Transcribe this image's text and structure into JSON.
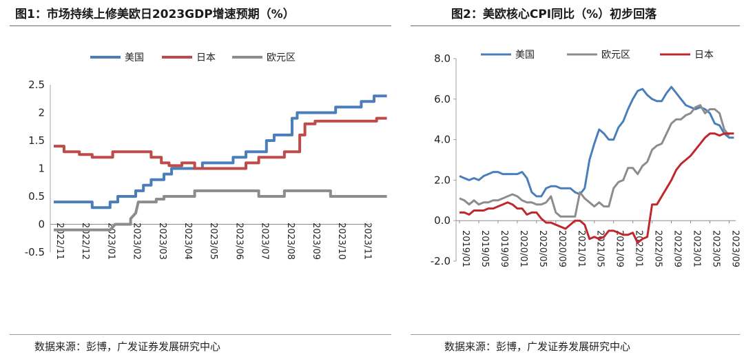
{
  "left": {
    "title": "图1：市场持续上修美欧日2023GDP增速预期（%）",
    "source": "数据来源：彭博，广发证券发展研究中心"
  },
  "right": {
    "title": "图2：美欧核心CPI同比（%）初步回落",
    "source": "数据来源：彭博，广发证券发展研究中心"
  },
  "chart_data": [
    {
      "type": "line",
      "title": "图1：市场持续上修美欧日2023GDP增速预期（%）",
      "xlabel": "",
      "ylabel": "",
      "ylim": [
        -0.5,
        2.5
      ],
      "yticks": [
        "2.5",
        "2",
        "1.5",
        "1",
        "0.5",
        "0",
        "-0.5"
      ],
      "xticks": [
        "2022/11",
        "2022/12",
        "2023/01",
        "2023/02",
        "2023/03",
        "2023/04",
        "2023/05",
        "2023/06",
        "2023/07",
        "2023/08",
        "2023/09",
        "2023/10",
        "2023/11"
      ],
      "legend": "top-center",
      "series": [
        {
          "name": "美国",
          "color": "#4a7ebb",
          "points": [
            [
              0,
              0.4
            ],
            [
              1.5,
              0.4
            ],
            [
              1.5,
              0.3
            ],
            [
              2.2,
              0.3
            ],
            [
              2.2,
              0.4
            ],
            [
              2.5,
              0.4
            ],
            [
              2.5,
              0.5
            ],
            [
              3.2,
              0.5
            ],
            [
              3.2,
              0.6
            ],
            [
              3.5,
              0.6
            ],
            [
              3.5,
              0.7
            ],
            [
              3.8,
              0.7
            ],
            [
              3.8,
              0.8
            ],
            [
              4.3,
              0.8
            ],
            [
              4.3,
              0.9
            ],
            [
              4.6,
              0.9
            ],
            [
              4.6,
              1.0
            ],
            [
              5.8,
              1.0
            ],
            [
              5.8,
              1.1
            ],
            [
              7.0,
              1.1
            ],
            [
              7.0,
              1.2
            ],
            [
              7.5,
              1.2
            ],
            [
              7.5,
              1.3
            ],
            [
              8.3,
              1.3
            ],
            [
              8.3,
              1.5
            ],
            [
              8.6,
              1.5
            ],
            [
              8.6,
              1.6
            ],
            [
              9.3,
              1.6
            ],
            [
              9.3,
              1.9
            ],
            [
              9.5,
              1.9
            ],
            [
              9.5,
              2.0
            ],
            [
              11.0,
              2.0
            ],
            [
              11.0,
              2.1
            ],
            [
              12.0,
              2.1
            ],
            [
              12.0,
              2.2
            ],
            [
              12.5,
              2.2
            ],
            [
              12.5,
              2.3
            ],
            [
              13,
              2.3
            ]
          ]
        },
        {
          "name": "日本",
          "color": "#be4b48",
          "points": [
            [
              0,
              1.4
            ],
            [
              0.4,
              1.4
            ],
            [
              0.4,
              1.3
            ],
            [
              1.0,
              1.3
            ],
            [
              1.0,
              1.25
            ],
            [
              1.5,
              1.25
            ],
            [
              1.5,
              1.2
            ],
            [
              2.3,
              1.2
            ],
            [
              2.3,
              1.3
            ],
            [
              3.8,
              1.3
            ],
            [
              3.8,
              1.2
            ],
            [
              4.2,
              1.2
            ],
            [
              4.2,
              1.1
            ],
            [
              4.5,
              1.1
            ],
            [
              4.5,
              1.05
            ],
            [
              5.0,
              1.05
            ],
            [
              5.0,
              1.1
            ],
            [
              5.5,
              1.1
            ],
            [
              5.5,
              1.0
            ],
            [
              7.5,
              1.0
            ],
            [
              7.5,
              1.1
            ],
            [
              8.0,
              1.1
            ],
            [
              8.0,
              1.2
            ],
            [
              9.0,
              1.2
            ],
            [
              9.0,
              1.3
            ],
            [
              9.6,
              1.3
            ],
            [
              9.6,
              1.6
            ],
            [
              9.8,
              1.6
            ],
            [
              9.8,
              1.8
            ],
            [
              10.2,
              1.8
            ],
            [
              10.2,
              1.85
            ],
            [
              12.6,
              1.85
            ],
            [
              12.6,
              1.9
            ],
            [
              13,
              1.9
            ]
          ]
        },
        {
          "name": "欧元区",
          "color": "#8c8c8c",
          "points": [
            [
              0,
              -0.1
            ],
            [
              2.2,
              -0.1
            ],
            [
              2.4,
              0.0
            ],
            [
              3.0,
              0.0
            ],
            [
              3.0,
              0.1
            ],
            [
              3.2,
              0.2
            ],
            [
              3.3,
              0.4
            ],
            [
              4.0,
              0.4
            ],
            [
              4.0,
              0.45
            ],
            [
              4.3,
              0.45
            ],
            [
              4.3,
              0.5
            ],
            [
              5.5,
              0.5
            ],
            [
              5.5,
              0.6
            ],
            [
              8.0,
              0.6
            ],
            [
              8.0,
              0.5
            ],
            [
              9.0,
              0.5
            ],
            [
              9.0,
              0.6
            ],
            [
              10.8,
              0.6
            ],
            [
              10.8,
              0.5
            ],
            [
              13,
              0.5
            ]
          ]
        }
      ]
    },
    {
      "type": "line",
      "title": "图2：美欧核心CPI同比（%）初步回落",
      "xlabel": "",
      "ylabel": "",
      "ylim": [
        -2.0,
        8.0
      ],
      "yticks": [
        "8.0",
        "6.0",
        "4.0",
        "2.0",
        "0.0",
        "-2.0"
      ],
      "xticks": [
        "2019/01",
        "2019/05",
        "2019/09",
        "2020/01",
        "2020/05",
        "2020/09",
        "2021/01",
        "2021/05",
        "2021/09",
        "2022/01",
        "2022/05",
        "2022/09",
        "2023/01",
        "2023/05",
        "2023/09"
      ],
      "legend": "top-center",
      "series": [
        {
          "name": "美国",
          "color": "#4a7ebb",
          "points": [
            [
              0,
              2.2
            ],
            [
              1,
              2.1
            ],
            [
              2,
              2.0
            ],
            [
              3,
              2.1
            ],
            [
              4,
              2.0
            ],
            [
              5,
              2.2
            ],
            [
              6,
              2.3
            ],
            [
              7,
              2.4
            ],
            [
              8,
              2.4
            ],
            [
              9,
              2.3
            ],
            [
              10,
              2.3
            ],
            [
              11,
              2.3
            ],
            [
              12,
              2.3
            ],
            [
              13,
              2.4
            ],
            [
              14,
              2.1
            ],
            [
              15,
              1.4
            ],
            [
              16,
              1.2
            ],
            [
              17,
              1.2
            ],
            [
              18,
              1.6
            ],
            [
              19,
              1.7
            ],
            [
              20,
              1.7
            ],
            [
              21,
              1.6
            ],
            [
              22,
              1.6
            ],
            [
              23,
              1.6
            ],
            [
              24,
              1.4
            ],
            [
              25,
              1.3
            ],
            [
              26,
              1.6
            ],
            [
              27,
              3.0
            ],
            [
              28,
              3.8
            ],
            [
              29,
              4.5
            ],
            [
              30,
              4.3
            ],
            [
              31,
              4.0
            ],
            [
              32,
              4.0
            ],
            [
              33,
              4.6
            ],
            [
              34,
              4.9
            ],
            [
              35,
              5.5
            ],
            [
              36,
              6.0
            ],
            [
              37,
              6.4
            ],
            [
              38,
              6.5
            ],
            [
              39,
              6.2
            ],
            [
              40,
              6.0
            ],
            [
              41,
              5.9
            ],
            [
              42,
              5.9
            ],
            [
              43,
              6.3
            ],
            [
              44,
              6.6
            ],
            [
              45,
              6.3
            ],
            [
              46,
              6.0
            ],
            [
              47,
              5.7
            ],
            [
              48,
              5.6
            ],
            [
              49,
              5.5
            ],
            [
              50,
              5.6
            ],
            [
              51,
              5.5
            ],
            [
              52,
              5.3
            ],
            [
              53,
              4.8
            ],
            [
              54,
              4.7
            ],
            [
              55,
              4.3
            ],
            [
              56,
              4.1
            ],
            [
              57,
              4.1
            ]
          ]
        },
        {
          "name": "欧元区",
          "color": "#8c8c8c",
          "points": [
            [
              0,
              1.1
            ],
            [
              1,
              1.0
            ],
            [
              2,
              0.8
            ],
            [
              3,
              1.0
            ],
            [
              4,
              0.8
            ],
            [
              5,
              0.9
            ],
            [
              6,
              0.9
            ],
            [
              7,
              1.0
            ],
            [
              8,
              1.0
            ],
            [
              9,
              1.1
            ],
            [
              10,
              1.2
            ],
            [
              11,
              1.3
            ],
            [
              12,
              1.2
            ],
            [
              13,
              1.0
            ],
            [
              14,
              0.9
            ],
            [
              15,
              0.9
            ],
            [
              16,
              0.8
            ],
            [
              17,
              0.8
            ],
            [
              18,
              0.9
            ],
            [
              19,
              1.2
            ],
            [
              20,
              0.4
            ],
            [
              21,
              0.2
            ],
            [
              22,
              0.2
            ],
            [
              23,
              0.2
            ],
            [
              24,
              0.2
            ],
            [
              25,
              1.4
            ],
            [
              26,
              1.1
            ],
            [
              27,
              0.9
            ],
            [
              28,
              0.7
            ],
            [
              29,
              0.9
            ],
            [
              30,
              0.7
            ],
            [
              31,
              0.7
            ],
            [
              32,
              1.6
            ],
            [
              33,
              1.9
            ],
            [
              34,
              2.0
            ],
            [
              35,
              2.6
            ],
            [
              36,
              2.6
            ],
            [
              37,
              2.3
            ],
            [
              38,
              2.7
            ],
            [
              39,
              2.9
            ],
            [
              40,
              3.5
            ],
            [
              41,
              3.7
            ],
            [
              42,
              3.8
            ],
            [
              43,
              4.3
            ],
            [
              44,
              4.8
            ],
            [
              45,
              5.0
            ],
            [
              46,
              5.0
            ],
            [
              47,
              5.2
            ],
            [
              48,
              5.3
            ],
            [
              49,
              5.6
            ],
            [
              50,
              5.7
            ],
            [
              51,
              5.3
            ],
            [
              52,
              5.5
            ],
            [
              53,
              5.5
            ],
            [
              54,
              5.3
            ],
            [
              55,
              4.5
            ],
            [
              56,
              4.2
            ]
          ]
        },
        {
          "name": "日本",
          "color": "#c0272d",
          "points": [
            [
              0,
              0.4
            ],
            [
              1,
              0.4
            ],
            [
              2,
              0.3
            ],
            [
              3,
              0.5
            ],
            [
              4,
              0.5
            ],
            [
              5,
              0.5
            ],
            [
              6,
              0.6
            ],
            [
              7,
              0.6
            ],
            [
              8,
              0.7
            ],
            [
              9,
              0.8
            ],
            [
              10,
              0.9
            ],
            [
              11,
              0.8
            ],
            [
              12,
              0.6
            ],
            [
              13,
              0.6
            ],
            [
              14,
              0.3
            ],
            [
              15,
              0.4
            ],
            [
              16,
              0.4
            ],
            [
              17,
              0.1
            ],
            [
              18,
              -0.1
            ],
            [
              19,
              -0.1
            ],
            [
              20,
              -0.2
            ],
            [
              21,
              -0.3
            ],
            [
              22,
              -0.4
            ],
            [
              23,
              -0.2
            ],
            [
              24,
              0.0
            ],
            [
              25,
              0.0
            ],
            [
              26,
              -0.2
            ],
            [
              27,
              -0.9
            ],
            [
              28,
              -0.8
            ],
            [
              29,
              -0.9
            ],
            [
              30,
              -0.8
            ],
            [
              31,
              -0.5
            ],
            [
              32,
              -0.5
            ],
            [
              33,
              -0.6
            ],
            [
              34,
              -0.7
            ],
            [
              35,
              -0.7
            ],
            [
              36,
              -0.6
            ],
            [
              37,
              -1.1
            ],
            [
              38,
              -0.9
            ],
            [
              39,
              -0.8
            ],
            [
              40,
              0.8
            ],
            [
              41,
              0.8
            ],
            [
              42,
              1.2
            ],
            [
              43,
              1.6
            ],
            [
              44,
              2.0
            ],
            [
              45,
              2.5
            ],
            [
              46,
              2.8
            ],
            [
              47,
              3.0
            ],
            [
              48,
              3.2
            ],
            [
              49,
              3.5
            ],
            [
              50,
              3.8
            ],
            [
              51,
              4.1
            ],
            [
              52,
              4.3
            ],
            [
              53,
              4.3
            ],
            [
              54,
              4.2
            ],
            [
              55,
              4.3
            ],
            [
              56,
              4.3
            ],
            [
              57,
              4.3
            ]
          ]
        }
      ]
    }
  ]
}
